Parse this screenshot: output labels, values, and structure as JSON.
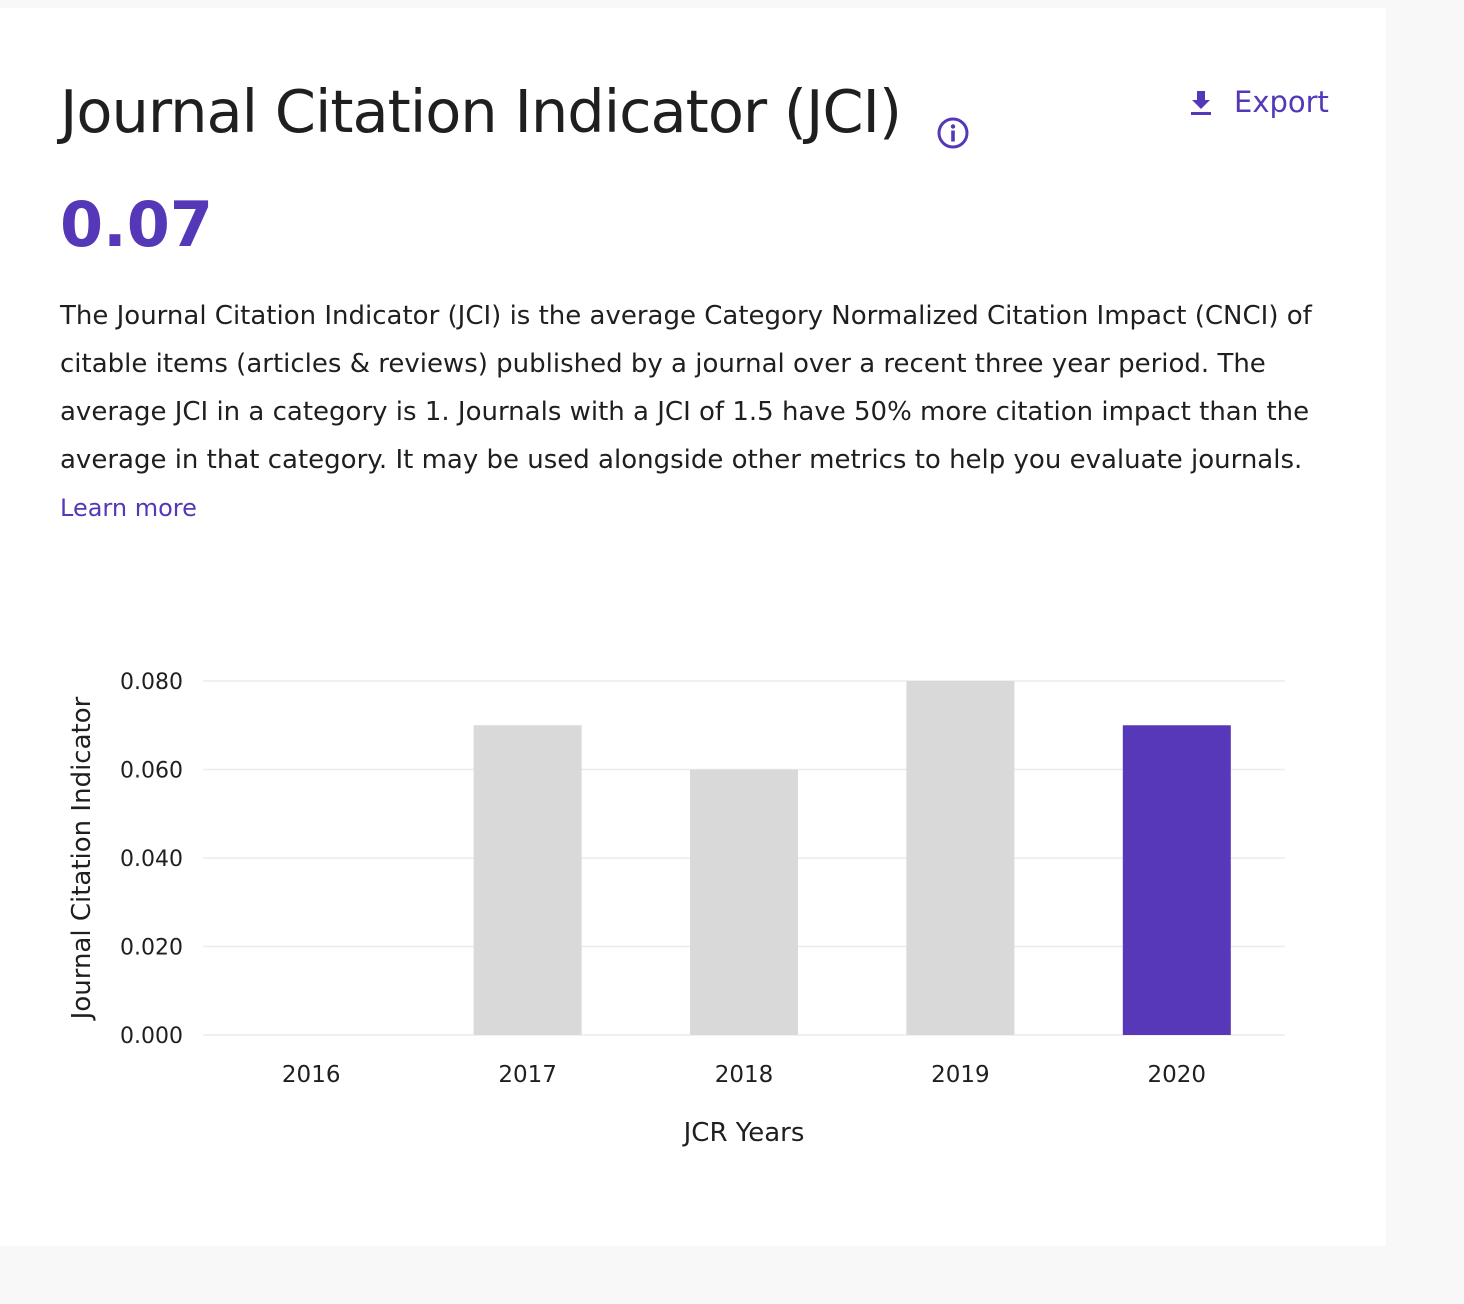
{
  "header": {
    "title": "Journal Citation Indicator (JCI)",
    "info_icon": "info-circle-icon",
    "export_label": "Export",
    "export_icon": "download-icon"
  },
  "metric": {
    "value": "0.07"
  },
  "description": {
    "text": "The Journal Citation Indicator (JCI) is the average Category Normalized Citation Impact (CNCI) of citable items (articles & reviews) published by a journal over a recent three year period. The average JCI in a category is 1. Journals with a JCI of 1.5 have 50% more citation impact than the average in that category. It may be used alongside other metrics to help you evaluate journals.",
    "link_label": "Learn more"
  },
  "colors": {
    "accent": "#5538b8",
    "bar_default": "#d9d9d9",
    "bar_highlight": "#5738b8",
    "grid": "#ececec"
  },
  "chart_data": {
    "type": "bar",
    "categories": [
      "2016",
      "2017",
      "2018",
      "2019",
      "2020"
    ],
    "values": [
      0,
      0.07,
      0.06,
      0.08,
      0.07
    ],
    "highlight_category": "2020",
    "xlabel": "JCR Years",
    "ylabel": "Journal Citation Indicator",
    "ylim": [
      0,
      0.08
    ],
    "yticks": [
      "0.000",
      "0.020",
      "0.040",
      "0.060",
      "0.080"
    ],
    "grid": true
  }
}
